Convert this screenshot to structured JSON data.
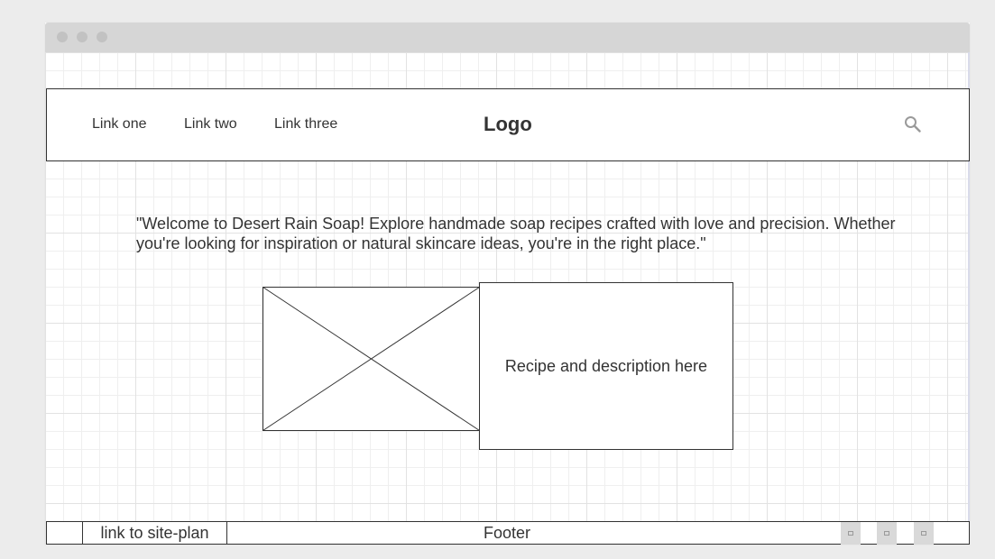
{
  "header": {
    "nav_links": [
      "Link one",
      "Link two",
      "Link three"
    ],
    "logo": "Logo",
    "search_icon": "search-icon"
  },
  "main": {
    "welcome_text": "\"Welcome to Desert Rain Soap! Explore handmade soap recipes crafted with love and precision. Whether you're looking for inspiration or natural skincare ideas, you're in the right place.\"",
    "image_placeholder_icon": "image-placeholder-icon",
    "recipe_text": "Recipe and description here"
  },
  "footer": {
    "site_plan_link": "link to site-plan",
    "label": "Footer",
    "social_icons": [
      "social-icon-1",
      "social-icon-2",
      "social-icon-3"
    ]
  },
  "colors": {
    "stroke": "#333333",
    "grid": "#e2e2e2",
    "titlebar": "#d6d6d6"
  }
}
